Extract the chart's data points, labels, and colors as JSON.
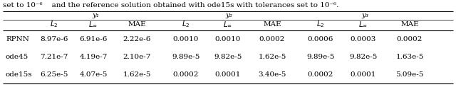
{
  "caption_text": "set to 10⁻⁶    and the reference solution obtained with ode15s with tolerances set to 10⁻⁶.",
  "group_headers": [
    "y₁",
    "y₂",
    "y₃"
  ],
  "row_labels": [
    "RPNN",
    "ode45",
    "ode15s"
  ],
  "data": [
    [
      "8.97e-6",
      "6.91e-6",
      "2.22e-6",
      "0.0010",
      "0.0010",
      "0.0002",
      "0.0006",
      "0.0003",
      "0.0002"
    ],
    [
      "7.21e-7",
      "4.19e-7",
      "2.10e-7",
      "9.89e-5",
      "9.82e-5",
      "1.62e-5",
      "9.89e-5",
      "9.82e-5",
      "1.63e-5"
    ],
    [
      "6.25e-5",
      "4.07e-5",
      "1.62e-5",
      "0.0002",
      "0.0001",
      "3.40e-5",
      "0.0002",
      "0.0001",
      "5.09e-5"
    ]
  ],
  "background_color": "#ffffff",
  "font_size": 7.5
}
